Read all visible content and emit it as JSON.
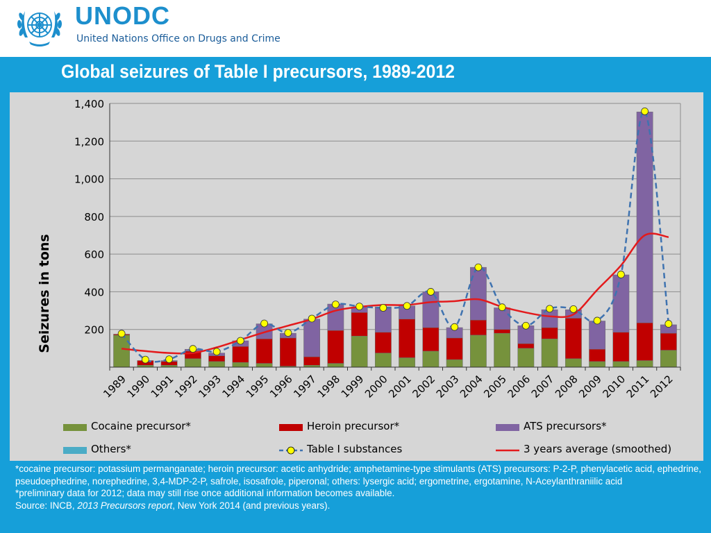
{
  "header": {
    "org_abbr": "UNODC",
    "org_name": "United Nations Office on Drugs and Crime"
  },
  "slide": {
    "title": "Global seizures of Table I precursors, 1989-2012"
  },
  "colors": {
    "band": "#169fd9",
    "panel": "#d6d6d6",
    "cocaine": "#76923c",
    "heroin": "#c00000",
    "ats": "#8064a2",
    "others": "#4bacc6",
    "table1_line": "#3f73b0",
    "table1_marker": "#ffff00",
    "avg_line": "#e31a1c"
  },
  "chart_data": {
    "type": "bar",
    "stacked": true,
    "ylabel": "Seizures in tons",
    "ylim": [
      0,
      1400
    ],
    "yticks": [
      "1,400",
      "1,200",
      "1,000",
      "800",
      "600",
      "400",
      "200"
    ],
    "ytick_values": [
      1400,
      1200,
      1000,
      800,
      600,
      400,
      200
    ],
    "grid": true,
    "legend_position": "bottom",
    "categories": [
      "1989",
      "1990",
      "1991",
      "1992",
      "1993",
      "1994",
      "1995",
      "1996",
      "1997",
      "1998",
      "1999",
      "2000",
      "2001",
      "2002",
      "2003",
      "2004",
      "2005",
      "2006",
      "2007",
      "2008",
      "2009",
      "2010",
      "2011",
      "2012"
    ],
    "series": [
      {
        "name": "Cocaine precursor*",
        "kind": "bar",
        "color_key": "cocaine",
        "values": [
          170,
          10,
          10,
          45,
          30,
          25,
          20,
          5,
          10,
          20,
          165,
          75,
          50,
          85,
          40,
          170,
          180,
          100,
          150,
          45,
          30,
          30,
          35,
          90
        ]
      },
      {
        "name": "Heroin precursor*",
        "kind": "bar",
        "color_key": "heroin",
        "values": [
          5,
          25,
          20,
          40,
          30,
          85,
          130,
          150,
          45,
          175,
          125,
          110,
          205,
          125,
          115,
          80,
          20,
          25,
          60,
          215,
          65,
          155,
          200,
          90
        ]
      },
      {
        "name": "ATS precursors*",
        "kind": "bar",
        "color_key": "ats",
        "values": [
          0,
          0,
          5,
          10,
          15,
          30,
          80,
          25,
          200,
          140,
          30,
          135,
          70,
          190,
          55,
          280,
          115,
          95,
          95,
          45,
          150,
          305,
          1120,
          45
        ]
      },
      {
        "name": "Others*",
        "kind": "bar",
        "color_key": "others",
        "values": [
          0,
          0,
          0,
          0,
          0,
          0,
          0,
          0,
          0,
          0,
          0,
          0,
          0,
          0,
          0,
          0,
          0,
          0,
          0,
          0,
          0,
          0,
          0,
          0
        ]
      },
      {
        "name": "Table I substances",
        "kind": "line-dashed-markers",
        "color_key": "table1_line",
        "values": [
          178,
          40,
          42,
          97,
          82,
          140,
          232,
          182,
          258,
          333,
          322,
          315,
          325,
          400,
          213,
          530,
          318,
          220,
          310,
          308,
          247,
          492,
          1358,
          230
        ]
      },
      {
        "name": "3 years average (smoothed)",
        "kind": "line-smooth",
        "color_key": "avg_line",
        "values": [
          98,
          85,
          75,
          75,
          105,
          145,
          185,
          220,
          255,
          300,
          320,
          330,
          330,
          345,
          350,
          360,
          320,
          290,
          270,
          280,
          410,
          540,
          700,
          690
        ]
      }
    ]
  },
  "footnote": {
    "line1": "*cocaine precursor: potassium permanganate; heroin precursor: acetic anhydride; amphetamine-type stimulants (ATS) precursors: P-2-P, phenylacetic acid, ephedrine, pseudoephedrine, norephedrine, 3,4-MDP-2-P, safrole, isosafrole, piperonal; others: lysergic acid; ergometrine, ergotamine, N-Aceylanthraniilic acid",
    "line2": "*preliminary data for 2012; data may still rise once additional information becomes available.",
    "source_prefix": "Source: INCB, ",
    "source_italic": "2013 Precursors report",
    "source_suffix": ", New York 2014 (and previous years)."
  }
}
